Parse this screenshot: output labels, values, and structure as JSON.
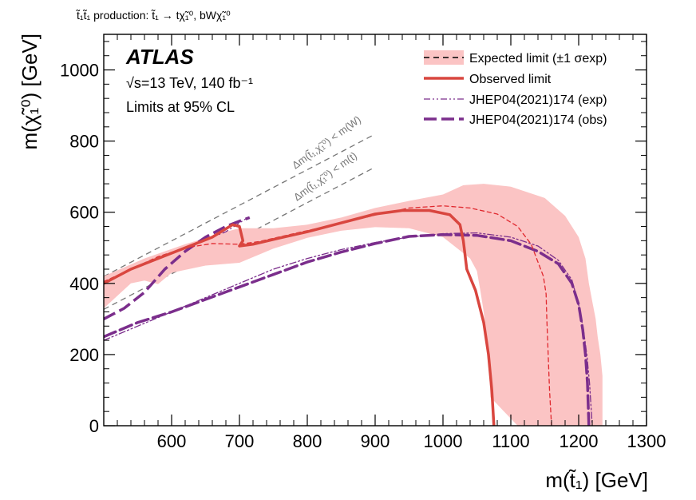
{
  "chart_data": {
    "type": "line",
    "process_label": "t̃₁t̃₁ production: t̃₁ → tχ̃₁⁰, bWχ̃₁⁰",
    "experiment": "ATLAS",
    "energy_lumi": "√s=13 TeV, 140 fb⁻¹",
    "cl_text": "Limits at 95% CL",
    "xlabel": "m(t̃₁) [GeV]",
    "ylabel": "m(χ̃₁⁰) [GeV]",
    "xlim": [
      500,
      1300
    ],
    "ylim": [
      0,
      1100
    ],
    "xticks": [
      600,
      700,
      800,
      900,
      1000,
      1100,
      1200,
      1300
    ],
    "yticks": [
      0,
      200,
      400,
      600,
      800,
      1000
    ],
    "kinematic_lines": [
      {
        "label": "Δm(t̃₁,χ̃₁⁰) < m(W)",
        "offset": 80.4,
        "points": [
          [
            500,
            419.6
          ],
          [
            900,
            819.6
          ]
        ]
      },
      {
        "label": "Δm(t̃₁,χ̃₁⁰) < m(t)",
        "offset": 173,
        "points": [
          [
            500,
            327
          ],
          [
            900,
            727
          ]
        ]
      }
    ],
    "series": [
      {
        "name": "Expected limit (±1 σexp)",
        "role": "band",
        "color": "#fbc4c4",
        "upper": [
          [
            500,
            420
          ],
          [
            560,
            470
          ],
          [
            620,
            510
          ],
          [
            680,
            545
          ],
          [
            700,
            555
          ],
          [
            750,
            555
          ],
          [
            800,
            565
          ],
          [
            850,
            585
          ],
          [
            900,
            612
          ],
          [
            950,
            632
          ],
          [
            1000,
            650
          ],
          [
            1030,
            676
          ],
          [
            1060,
            680
          ],
          [
            1100,
            672
          ],
          [
            1150,
            640
          ],
          [
            1180,
            590
          ],
          [
            1200,
            530
          ],
          [
            1210,
            470
          ],
          [
            1215,
            400
          ],
          [
            1220,
            350
          ],
          [
            1225,
            300
          ],
          [
            1228,
            250
          ],
          [
            1232,
            200
          ],
          [
            1235,
            140
          ],
          [
            1235,
            0
          ]
        ],
        "lower": [
          [
            500,
            330
          ],
          [
            540,
            400
          ],
          [
            560,
            408
          ],
          [
            580,
            398
          ],
          [
            600,
            430
          ],
          [
            650,
            450
          ],
          [
            700,
            458
          ],
          [
            750,
            498
          ],
          [
            800,
            528
          ],
          [
            850,
            548
          ],
          [
            900,
            558
          ],
          [
            950,
            555
          ],
          [
            1000,
            530
          ],
          [
            1020,
            500
          ],
          [
            1040,
            470
          ],
          [
            1050,
            435
          ],
          [
            1055,
            380
          ],
          [
            1060,
            320
          ],
          [
            1063,
            260
          ],
          [
            1065,
            200
          ],
          [
            1068,
            150
          ],
          [
            1070,
            80
          ],
          [
            1080,
            60
          ],
          [
            1090,
            40
          ],
          [
            1100,
            20
          ],
          [
            1110,
            0
          ]
        ]
      },
      {
        "name": "Expected limit",
        "role": "expected",
        "color": "#e0282e",
        "points": [
          [
            500,
            405
          ],
          [
            540,
            440
          ],
          [
            580,
            475
          ],
          [
            620,
            500
          ],
          [
            660,
            512
          ],
          [
            700,
            510
          ],
          [
            730,
            518
          ],
          [
            780,
            540
          ],
          [
            840,
            565
          ],
          [
            900,
            592
          ],
          [
            950,
            612
          ],
          [
            1000,
            618
          ],
          [
            1040,
            612
          ],
          [
            1080,
            595
          ],
          [
            1110,
            560
          ],
          [
            1130,
            510
          ],
          [
            1140,
            460
          ],
          [
            1148,
            420
          ],
          [
            1152,
            370
          ],
          [
            1153,
            300
          ],
          [
            1155,
            200
          ],
          [
            1157,
            100
          ],
          [
            1160,
            0
          ]
        ]
      },
      {
        "name": "Observed limit",
        "role": "observed",
        "color": "#d9463f",
        "points": [
          [
            500,
            400
          ],
          [
            540,
            440
          ],
          [
            580,
            470
          ],
          [
            620,
            500
          ],
          [
            660,
            530
          ],
          [
            690,
            565
          ],
          [
            700,
            560
          ],
          [
            705,
            520
          ],
          [
            700,
            505
          ],
          [
            720,
            510
          ],
          [
            760,
            528
          ],
          [
            800,
            545
          ],
          [
            850,
            570
          ],
          [
            900,
            595
          ],
          [
            940,
            605
          ],
          [
            980,
            605
          ],
          [
            1010,
            593
          ],
          [
            1025,
            565
          ],
          [
            1030,
            520
          ],
          [
            1035,
            440
          ],
          [
            1048,
            380
          ],
          [
            1060,
            290
          ],
          [
            1067,
            200
          ],
          [
            1072,
            100
          ],
          [
            1075,
            0
          ]
        ]
      },
      {
        "name": "JHEP04(2021)174 (exp)",
        "role": "ref_exp",
        "color": "#7b2e8c",
        "points": [
          [
            500,
            240
          ],
          [
            550,
            280
          ],
          [
            600,
            320
          ],
          [
            650,
            360
          ],
          [
            700,
            400
          ],
          [
            750,
            440
          ],
          [
            800,
            470
          ],
          [
            850,
            495
          ],
          [
            900,
            515
          ],
          [
            950,
            530
          ],
          [
            1000,
            540
          ],
          [
            1050,
            542
          ],
          [
            1100,
            530
          ],
          [
            1140,
            505
          ],
          [
            1170,
            465
          ],
          [
            1190,
            410
          ],
          [
            1200,
            340
          ],
          [
            1207,
            270
          ],
          [
            1212,
            200
          ],
          [
            1216,
            120
          ],
          [
            1220,
            0
          ]
        ]
      },
      {
        "name": "JHEP04(2021)174 (obs)",
        "role": "ref_obs",
        "color": "#7b2e8c",
        "points": [
          [
            500,
            250
          ],
          [
            550,
            290
          ],
          [
            600,
            320
          ],
          [
            650,
            355
          ],
          [
            700,
            390
          ],
          [
            750,
            425
          ],
          [
            800,
            460
          ],
          [
            850,
            488
          ],
          [
            900,
            512
          ],
          [
            950,
            532
          ],
          [
            1000,
            537
          ],
          [
            1050,
            535
          ],
          [
            1100,
            520
          ],
          [
            1140,
            490
          ],
          [
            1170,
            455
          ],
          [
            1190,
            400
          ],
          [
            1200,
            340
          ],
          [
            1206,
            270
          ],
          [
            1210,
            200
          ],
          [
            1213,
            120
          ],
          [
            1215,
            0
          ]
        ],
        "diagonal": [
          [
            500,
            300
          ],
          [
            530,
            330
          ],
          [
            560,
            375
          ],
          [
            590,
            440
          ],
          [
            620,
            490
          ],
          [
            650,
            530
          ],
          [
            680,
            560
          ],
          [
            700,
            575
          ],
          [
            715,
            585
          ]
        ],
        "diagonal_tail": [
          [
            640,
            515
          ],
          [
            680,
            545
          ],
          [
            700,
            570
          ],
          [
            712,
            585
          ]
        ]
      }
    ],
    "legend": [
      {
        "label": "Expected limit (±1 σexp)",
        "style": "band-dashed"
      },
      {
        "label": "Observed limit",
        "style": "solid-red"
      },
      {
        "label": "JHEP04(2021)174 (exp)",
        "style": "dashdot-purple"
      },
      {
        "label": "JHEP04(2021)174 (obs)",
        "style": "longdash-purple"
      }
    ]
  }
}
